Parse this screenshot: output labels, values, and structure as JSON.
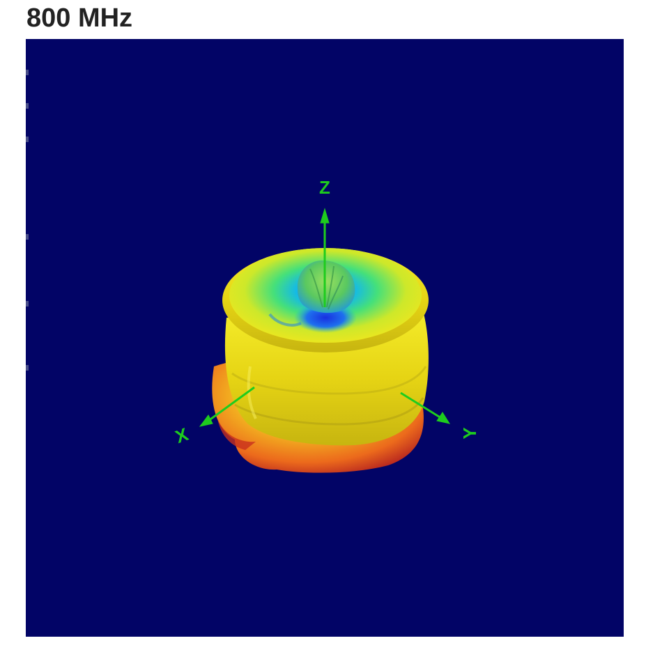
{
  "title": "800 MHz",
  "viewport": {
    "background": "#020466",
    "axis_color": "#1ecc1e"
  },
  "axes": {
    "z_label": "Z",
    "x_label": "X",
    "y_label": "Y"
  },
  "colormap": [
    "#1a3cff",
    "#12c7e6",
    "#3ee27a",
    "#e8e81a",
    "#f2a020",
    "#e83a1a",
    "#a81220"
  ]
}
